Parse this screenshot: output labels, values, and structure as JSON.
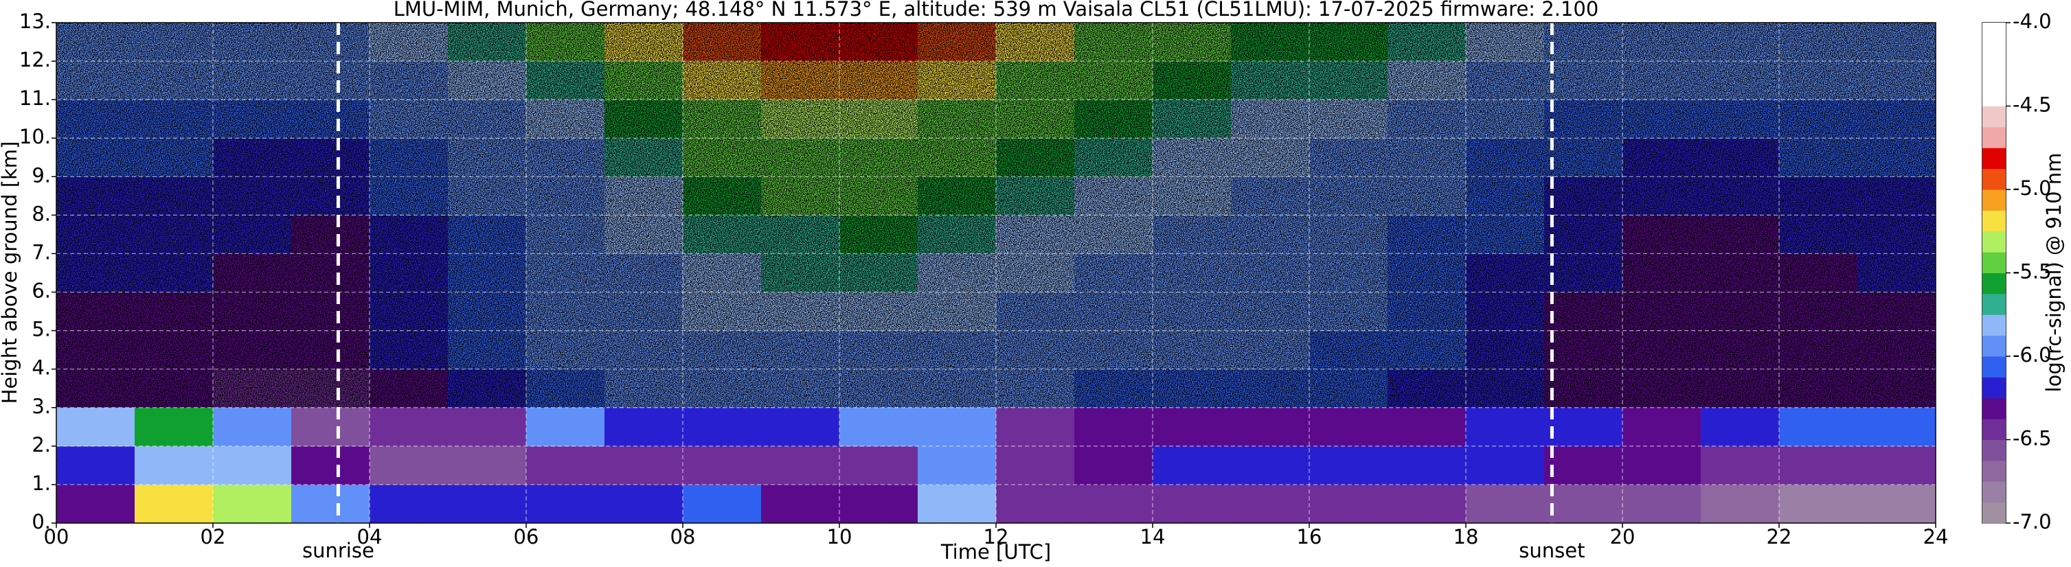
{
  "chart_data": {
    "type": "heatmap",
    "title": "LMU-MIM, Munich, Germany; 48.148° N 11.573° E, altitude: 539 m    Vaisala CL51 (CL51LMU): 17-07-2025    firmware: 2.100",
    "xlabel": "Time [UTC]",
    "ylabel": "Height above ground [km]",
    "xlim": [
      0,
      24
    ],
    "ylim": [
      0,
      13
    ],
    "xticks": [
      {
        "value": 0,
        "label": "00"
      },
      {
        "value": 2,
        "label": "02"
      },
      {
        "value": 4,
        "label": "04"
      },
      {
        "value": 6,
        "label": "06"
      },
      {
        "value": 8,
        "label": "08"
      },
      10,
      12,
      14,
      16,
      18,
      20,
      22,
      24
    ],
    "yticks": [
      {
        "value": 0,
        "label": "0."
      },
      {
        "value": 1,
        "label": "1."
      },
      {
        "value": 2,
        "label": "2."
      },
      {
        "value": 3,
        "label": "3."
      },
      {
        "value": 4,
        "label": "4."
      },
      {
        "value": 5,
        "label": "5."
      },
      {
        "value": 6,
        "label": "6."
      },
      {
        "value": 7,
        "label": "7."
      },
      {
        "value": 8,
        "label": "8."
      },
      {
        "value": 9,
        "label": "9."
      },
      {
        "value": 10,
        "label": "10."
      },
      {
        "value": 11,
        "label": "11."
      },
      {
        "value": 12,
        "label": "12."
      },
      {
        "value": 13,
        "label": "13."
      }
    ],
    "grid": true,
    "xbins": [
      0,
      1,
      2,
      3,
      4,
      5,
      6,
      7,
      8,
      9,
      10,
      11,
      12,
      13,
      14,
      15,
      16,
      17,
      18,
      19,
      20,
      21,
      22,
      23,
      24
    ],
    "ybins": [
      0,
      1,
      2,
      3,
      4,
      5,
      6,
      7,
      8,
      9,
      10,
      11,
      12,
      13
    ],
    "z": [
      [
        -6.3,
        -5.2,
        -5.3,
        -6.0,
        -6.2,
        -6.2,
        -6.2,
        -6.2,
        -6.1,
        -6.3,
        -6.3,
        -5.8,
        -6.4,
        -6.5,
        -6.5,
        -6.5,
        -6.5,
        -6.5,
        -6.6,
        -6.6,
        -6.6,
        -6.7,
        -6.8,
        -6.8
      ],
      [
        -6.2,
        -5.8,
        -5.8,
        -6.3,
        -6.6,
        -6.6,
        -6.5,
        -6.5,
        -6.5,
        -6.5,
        -6.4,
        -6.0,
        -6.5,
        -6.3,
        -6.2,
        -6.2,
        -6.2,
        -6.2,
        -6.2,
        -6.3,
        -6.3,
        -6.4,
        -6.5,
        -6.5
      ],
      [
        -5.8,
        -5.6,
        -6.0,
        -6.6,
        -6.4,
        -6.5,
        -6.0,
        -6.2,
        -6.2,
        -6.2,
        -6.0,
        -6.0,
        -6.5,
        -6.3,
        -6.3,
        -6.3,
        -6.3,
        -6.3,
        -6.2,
        -6.2,
        -6.3,
        -6.2,
        -6.1,
        -6.1
      ],
      [
        -6.3,
        -6.3,
        -6.4,
        -6.4,
        -6.3,
        -6.2,
        -6.1,
        -6.0,
        -6.0,
        -6.0,
        -6.0,
        -6.0,
        -6.0,
        -6.1,
        -6.1,
        -6.1,
        -6.1,
        -6.2,
        -6.2,
        -6.3,
        -6.3,
        -6.3,
        -6.3,
        -6.3
      ],
      [
        -6.3,
        -6.3,
        -6.3,
        -6.3,
        -6.2,
        -6.1,
        -6.0,
        -5.9,
        -5.9,
        -5.9,
        -5.9,
        -5.9,
        -5.9,
        -6.0,
        -6.0,
        -6.0,
        -6.1,
        -6.1,
        -6.2,
        -6.3,
        -6.3,
        -6.3,
        -6.3,
        -6.3
      ],
      [
        -6.3,
        -6.3,
        -6.3,
        -6.3,
        -6.2,
        -6.1,
        -6.0,
        -5.9,
        -5.8,
        -5.8,
        -5.8,
        -5.8,
        -5.9,
        -5.9,
        -6.0,
        -6.0,
        -6.0,
        -6.1,
        -6.2,
        -6.3,
        -6.3,
        -6.3,
        -6.3,
        -6.3
      ],
      [
        -6.2,
        -6.2,
        -6.3,
        -6.3,
        -6.2,
        -6.1,
        -6.0,
        -5.9,
        -5.8,
        -5.7,
        -5.7,
        -5.8,
        -5.8,
        -5.9,
        -5.9,
        -6.0,
        -6.0,
        -6.1,
        -6.2,
        -6.2,
        -6.3,
        -6.3,
        -6.3,
        -6.2
      ],
      [
        -6.2,
        -6.2,
        -6.2,
        -6.3,
        -6.2,
        -6.1,
        -6.0,
        -5.8,
        -5.7,
        -5.7,
        -5.6,
        -5.7,
        -5.8,
        -5.8,
        -5.9,
        -5.9,
        -6.0,
        -6.1,
        -6.1,
        -6.2,
        -6.3,
        -6.3,
        -6.2,
        -6.2
      ],
      [
        -6.2,
        -6.2,
        -6.2,
        -6.2,
        -6.1,
        -6.0,
        -5.9,
        -5.8,
        -5.6,
        -5.5,
        -5.5,
        -5.6,
        -5.7,
        -5.8,
        -5.8,
        -5.9,
        -6.0,
        -6.0,
        -6.1,
        -6.2,
        -6.2,
        -6.2,
        -6.2,
        -6.2
      ],
      [
        -6.1,
        -6.1,
        -6.2,
        -6.2,
        -6.1,
        -6.0,
        -5.9,
        -5.7,
        -5.5,
        -5.4,
        -5.4,
        -5.5,
        -5.6,
        -5.7,
        -5.8,
        -5.8,
        -5.9,
        -6.0,
        -6.1,
        -6.1,
        -6.2,
        -6.2,
        -6.1,
        -6.1
      ],
      [
        -6.1,
        -6.1,
        -6.1,
        -6.1,
        -6.0,
        -5.9,
        -5.8,
        -5.6,
        -5.4,
        -5.3,
        -5.3,
        -5.4,
        -5.5,
        -5.6,
        -5.7,
        -5.8,
        -5.8,
        -5.9,
        -6.0,
        -6.1,
        -6.1,
        -6.1,
        -6.1,
        -6.1
      ],
      [
        -6.0,
        -6.0,
        -6.0,
        -6.0,
        -5.9,
        -5.8,
        -5.7,
        -5.5,
        -5.2,
        -5.1,
        -5.1,
        -5.2,
        -5.4,
        -5.5,
        -5.6,
        -5.7,
        -5.7,
        -5.8,
        -5.9,
        -6.0,
        -6.0,
        -6.0,
        -6.0,
        -6.0
      ],
      [
        -5.9,
        -5.9,
        -5.9,
        -5.9,
        -5.8,
        -5.7,
        -5.5,
        -5.2,
        -4.9,
        -4.8,
        -4.8,
        -5.0,
        -5.2,
        -5.4,
        -5.5,
        -5.6,
        -5.6,
        -5.7,
        -5.8,
        -5.9,
        -5.9,
        -5.9,
        -5.9,
        -5.9
      ]
    ],
    "markers": [
      {
        "x": 3.6,
        "label": "sunrise"
      },
      {
        "x": 19.1,
        "label": "sunset"
      }
    ],
    "colorbar": {
      "label": "log(rc-signal) @ 910 nm",
      "clim": [
        -7,
        -4
      ],
      "ticks": [
        {
          "value": -7,
          "label": "-7.0"
        },
        -6.5,
        {
          "value": -6,
          "label": "-6.0"
        },
        -5.5,
        {
          "value": -5,
          "label": "-5.0"
        },
        -4.5,
        {
          "value": -4,
          "label": "-4.0"
        }
      ],
      "colors": [
        "#a090a0",
        "#9a80a4",
        "#9068a0",
        "#80509c",
        "#702e98",
        "#5c0a8c",
        "#2820d0",
        "#3060f0",
        "#6090f8",
        "#90b8f8",
        "#30b090",
        "#10a030",
        "#60d040",
        "#b0f060",
        "#f8e040",
        "#f8a020",
        "#f05010",
        "#e00000",
        "#f0a8a8",
        "#f0c8c8",
        "#ffffff",
        "#ffffff",
        "#ffffff",
        "#ffffff"
      ]
    }
  }
}
